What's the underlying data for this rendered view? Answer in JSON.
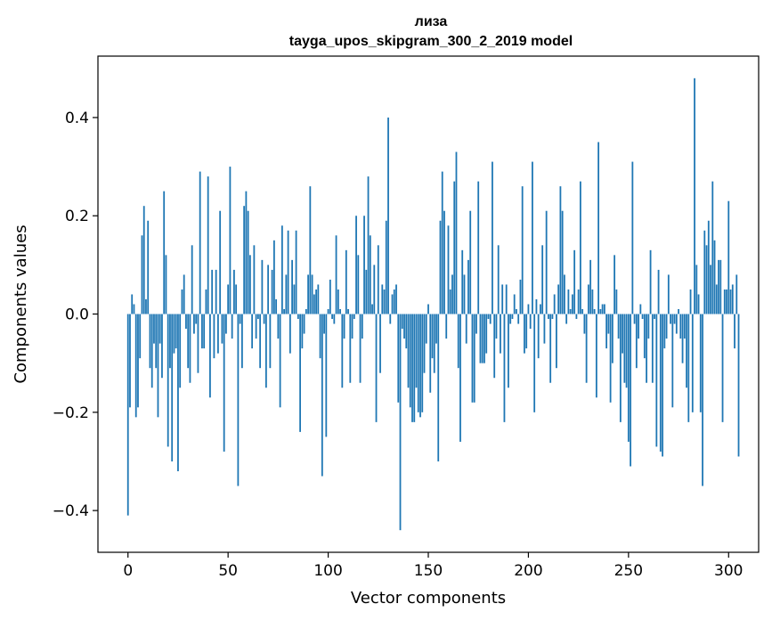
{
  "chart_data": {
    "type": "bar",
    "title": "лиза",
    "subtitle": "tayga_upos_skipgram_300_2_2019 model",
    "xlabel": "Vector components",
    "ylabel": "Components values",
    "xlim": [
      -15,
      315
    ],
    "ylim": [
      -0.485,
      0.525
    ],
    "xticks": [
      0,
      50,
      100,
      150,
      200,
      250,
      300
    ],
    "yticks": [
      -0.4,
      -0.2,
      0.0,
      0.2,
      0.4
    ],
    "ytick_labels": [
      "−0.4",
      "−0.2",
      "0.0",
      "0.2",
      "0.4"
    ],
    "grid": false,
    "bar_color": "#1f77b4",
    "values": [
      -0.41,
      -0.19,
      0.04,
      0.02,
      -0.21,
      -0.19,
      -0.09,
      0.16,
      0.22,
      0.03,
      0.19,
      -0.11,
      -0.15,
      -0.06,
      -0.11,
      -0.21,
      -0.06,
      -0.13,
      0.25,
      0.12,
      -0.27,
      -0.11,
      -0.3,
      -0.08,
      -0.07,
      -0.32,
      -0.15,
      0.05,
      0.08,
      -0.03,
      -0.11,
      -0.14,
      0.14,
      -0.04,
      -0.02,
      -0.12,
      0.29,
      -0.07,
      -0.07,
      0.05,
      0.28,
      -0.17,
      0.09,
      -0.09,
      0.09,
      -0.08,
      0.21,
      -0.06,
      -0.28,
      -0.04,
      0.06,
      0.3,
      -0.05,
      0.09,
      0.06,
      -0.35,
      -0.02,
      -0.11,
      0.22,
      0.25,
      0.21,
      0.12,
      -0.07,
      0.14,
      -0.05,
      -0.01,
      -0.11,
      0.11,
      -0.02,
      -0.15,
      0.1,
      -0.11,
      0.09,
      0.15,
      0.03,
      -0.05,
      -0.19,
      0.18,
      0.01,
      0.08,
      0.17,
      -0.08,
      0.11,
      0.06,
      0.17,
      -0.01,
      -0.24,
      -0.07,
      -0.04,
      0.01,
      0.08,
      0.26,
      0.08,
      0.04,
      0.05,
      0.06,
      -0.09,
      -0.33,
      -0.04,
      -0.25,
      0.01,
      0.07,
      -0.01,
      -0.02,
      0.16,
      0.05,
      0.01,
      -0.15,
      -0.05,
      0.13,
      0.01,
      -0.14,
      -0.05,
      -0.01,
      0.2,
      0.12,
      -0.14,
      -0.05,
      0.2,
      0.09,
      0.28,
      0.16,
      0.02,
      0.1,
      -0.22,
      0.14,
      -0.12,
      0.06,
      0.05,
      0.19,
      0.4,
      -0.02,
      0.04,
      0.05,
      0.06,
      -0.18,
      -0.44,
      -0.03,
      -0.05,
      -0.07,
      -0.15,
      -0.19,
      -0.22,
      -0.22,
      -0.15,
      -0.2,
      -0.21,
      -0.2,
      -0.12,
      -0.06,
      0.02,
      -0.16,
      -0.09,
      -0.12,
      -0.06,
      -0.3,
      0.19,
      0.29,
      0.21,
      -0.05,
      0.18,
      0.05,
      0.08,
      0.27,
      0.33,
      -0.11,
      -0.26,
      0.13,
      0.08,
      -0.06,
      0.11,
      0.21,
      -0.18,
      -0.18,
      -0.04,
      0.27,
      -0.1,
      -0.1,
      -0.1,
      -0.08,
      -0.01,
      -0.02,
      0.31,
      -0.13,
      -0.05,
      0.14,
      -0.08,
      0.06,
      -0.22,
      0.06,
      -0.15,
      -0.02,
      -0.01,
      0.04,
      0.01,
      -0.02,
      0.07,
      0.26,
      -0.08,
      -0.07,
      0.02,
      -0.03,
      0.31,
      -0.2,
      0.03,
      -0.09,
      0.02,
      0.14,
      -0.06,
      0.21,
      -0.01,
      -0.14,
      -0.01,
      0.04,
      -0.11,
      0.06,
      0.26,
      0.21,
      0.08,
      -0.02,
      0.05,
      0.01,
      0.04,
      0.13,
      -0.01,
      0.05,
      0.27,
      0.01,
      -0.04,
      -0.14,
      0.06,
      0.11,
      0.05,
      0.01,
      -0.17,
      0.35,
      0.01,
      0.02,
      0.02,
      -0.07,
      -0.04,
      -0.18,
      -0.1,
      0.12,
      0.05,
      -0.05,
      -0.22,
      -0.08,
      -0.14,
      -0.15,
      -0.26,
      -0.31,
      0.31,
      -0.02,
      -0.11,
      -0.05,
      0.02,
      -0.01,
      -0.09,
      -0.14,
      -0.05,
      0.13,
      -0.14,
      -0.01,
      -0.27,
      0.09,
      -0.28,
      -0.29,
      -0.07,
      -0.05,
      0.08,
      -0.02,
      -0.19,
      -0.02,
      -0.04,
      0.01,
      -0.05,
      -0.1,
      -0.05,
      -0.15,
      -0.22,
      0.05,
      -0.2,
      0.48,
      0.1,
      0.04,
      -0.2,
      -0.35,
      0.17,
      0.14,
      0.19,
      0.1,
      0.27,
      0.15,
      0.06,
      0.11,
      0.11,
      -0.22,
      0.05,
      0.05,
      0.23,
      0.05,
      0.06,
      -0.07,
      0.08,
      -0.29
    ]
  }
}
